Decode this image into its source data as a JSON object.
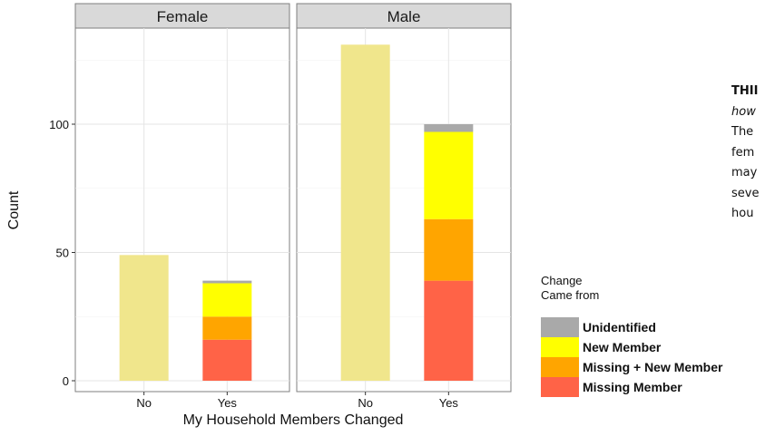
{
  "chart_data": {
    "type": "bar",
    "stacked": true,
    "facets": [
      "Female",
      "Male"
    ],
    "categories": [
      "No",
      "Yes"
    ],
    "xlabel": "My Household Members Changed",
    "ylabel": "Count",
    "ylim": [
      0,
      132
    ],
    "yticks": [
      0,
      50,
      100
    ],
    "grid": true,
    "no_bar_color": "#f0e68c",
    "no_values": {
      "Female": 49,
      "Male": 131
    },
    "series": [
      {
        "name": "Missing Member",
        "color": "#ff6347",
        "values": {
          "Female": 16,
          "Male": 39
        }
      },
      {
        "name": "Missing + New Member",
        "color": "#ffa500",
        "values": {
          "Female": 9,
          "Male": 24
        }
      },
      {
        "name": "New Member",
        "color": "#ffff00",
        "values": {
          "Female": 13,
          "Male": 34
        }
      },
      {
        "name": "Unidentified",
        "color": "#a9a9a9",
        "values": {
          "Female": 1,
          "Male": 3
        }
      }
    ],
    "legend": {
      "title_lines": [
        "Change",
        "Came from"
      ],
      "items": [
        "Unidentified",
        "New Member",
        "Missing + New Member",
        "Missing Member"
      ],
      "placement": "right"
    }
  },
  "side_text": {
    "lines": [
      "THII",
      "how",
      "The",
      "fem",
      "may",
      "seve",
      "hou"
    ]
  }
}
